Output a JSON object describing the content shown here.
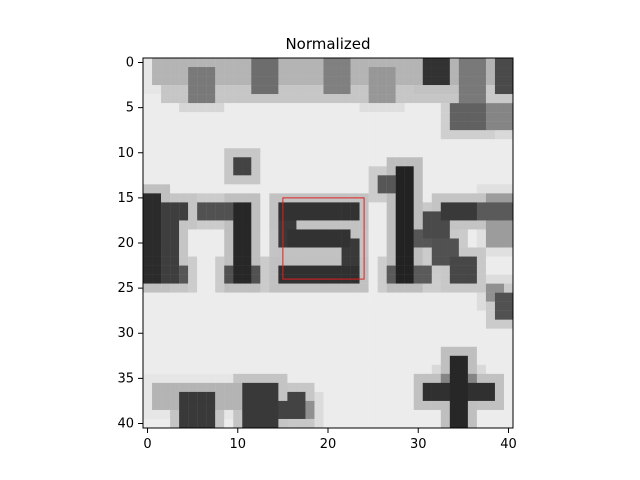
{
  "chart_data": {
    "type": "heatmap",
    "title": "Normalized",
    "colormap": "gray",
    "grid": false,
    "xlim": [
      -0.5,
      40.5
    ],
    "ylim": [
      40.5,
      -0.5
    ],
    "x_ticks": [
      0,
      10,
      20,
      30,
      40
    ],
    "y_ticks": [
      0,
      5,
      10,
      15,
      20,
      25,
      30,
      35,
      40
    ],
    "x_tick_labels": [
      "0",
      "10",
      "20",
      "30",
      "40"
    ],
    "y_tick_labels": [
      "0",
      "5",
      "10",
      "15",
      "20",
      "25",
      "30",
      "35",
      "40"
    ],
    "matrix_size": [
      41,
      41
    ],
    "annotation_box": {
      "x0": 15,
      "y0": 15,
      "x1": 24,
      "y1": 24,
      "color": "#e02020"
    },
    "image_content_text": "risk"
  }
}
